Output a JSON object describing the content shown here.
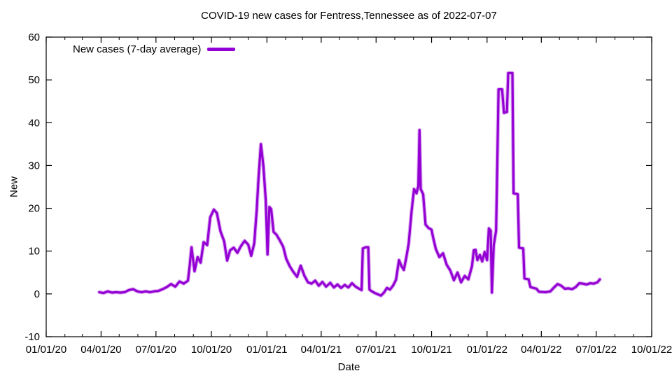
{
  "chart_data": {
    "type": "line",
    "title": "COVID-19 new cases for Fentress,Tennessee as of 2022-07-07",
    "xlabel": "Date",
    "ylabel": "New",
    "grid": false,
    "legend_position": "top-left-inside",
    "axis_color": "#000000",
    "background_color": "#ffffff",
    "ylim": [
      -10,
      60
    ],
    "y_ticks": [
      -10,
      0,
      10,
      20,
      30,
      40,
      50,
      60
    ],
    "xlim": [
      "2020-01-01",
      "2022-10-01"
    ],
    "x_ticks": [
      {
        "date": "2020-01-01",
        "label": "01/01/20"
      },
      {
        "date": "2020-04-01",
        "label": "04/01/20"
      },
      {
        "date": "2020-07-01",
        "label": "07/01/20"
      },
      {
        "date": "2020-10-01",
        "label": "10/01/20"
      },
      {
        "date": "2021-01-01",
        "label": "01/01/21"
      },
      {
        "date": "2021-04-01",
        "label": "04/01/21"
      },
      {
        "date": "2021-07-01",
        "label": "07/01/21"
      },
      {
        "date": "2021-10-01",
        "label": "10/01/21"
      },
      {
        "date": "2022-01-01",
        "label": "01/01/22"
      },
      {
        "date": "2022-04-01",
        "label": "04/01/22"
      },
      {
        "date": "2022-07-01",
        "label": "07/01/22"
      },
      {
        "date": "2022-10-01",
        "label": "10/01/22"
      }
    ],
    "legend": [
      {
        "label": "New cases (7-day average)",
        "color": "#9400D3"
      }
    ],
    "series": [
      {
        "name": "New cases (7-day average)",
        "color": "#9400D3",
        "halo_color": "#c06ae8",
        "points": [
          [
            "2020-03-29",
            0.4
          ],
          [
            "2020-04-05",
            0.2
          ],
          [
            "2020-04-12",
            0.6
          ],
          [
            "2020-04-19",
            0.3
          ],
          [
            "2020-04-26",
            0.4
          ],
          [
            "2020-05-03",
            0.3
          ],
          [
            "2020-05-10",
            0.4
          ],
          [
            "2020-05-17",
            0.9
          ],
          [
            "2020-05-24",
            1.1
          ],
          [
            "2020-05-31",
            0.6
          ],
          [
            "2020-06-07",
            0.4
          ],
          [
            "2020-06-14",
            0.6
          ],
          [
            "2020-06-21",
            0.4
          ],
          [
            "2020-06-28",
            0.6
          ],
          [
            "2020-07-05",
            0.7
          ],
          [
            "2020-07-12",
            1.1
          ],
          [
            "2020-07-19",
            1.6
          ],
          [
            "2020-07-26",
            2.3
          ],
          [
            "2020-08-02",
            1.7
          ],
          [
            "2020-08-09",
            2.9
          ],
          [
            "2020-08-16",
            2.4
          ],
          [
            "2020-08-23",
            3.1
          ],
          [
            "2020-08-26",
            6.6
          ],
          [
            "2020-08-29",
            10.9
          ],
          [
            "2020-09-03",
            5.3
          ],
          [
            "2020-09-08",
            8.6
          ],
          [
            "2020-09-13",
            7.3
          ],
          [
            "2020-09-18",
            12.1
          ],
          [
            "2020-09-24",
            11.4
          ],
          [
            "2020-09-29",
            17.9
          ],
          [
            "2020-10-05",
            19.7
          ],
          [
            "2020-10-10",
            18.9
          ],
          [
            "2020-10-16",
            14.6
          ],
          [
            "2020-10-22",
            12.3
          ],
          [
            "2020-10-27",
            7.8
          ],
          [
            "2020-11-01",
            10.2
          ],
          [
            "2020-11-07",
            10.8
          ],
          [
            "2020-11-13",
            9.6
          ],
          [
            "2020-11-19",
            11.2
          ],
          [
            "2020-11-25",
            12.4
          ],
          [
            "2020-12-01",
            11.5
          ],
          [
            "2020-12-06",
            8.9
          ],
          [
            "2020-12-11",
            11.8
          ],
          [
            "2020-12-15",
            19.5
          ],
          [
            "2020-12-18",
            27.0
          ],
          [
            "2020-12-22",
            35.0
          ],
          [
            "2020-12-26",
            30.0
          ],
          [
            "2020-12-30",
            22.0
          ],
          [
            "2021-01-02",
            9.2
          ],
          [
            "2021-01-05",
            20.3
          ],
          [
            "2021-01-08",
            19.8
          ],
          [
            "2021-01-12",
            14.5
          ],
          [
            "2021-01-17",
            13.8
          ],
          [
            "2021-01-22",
            12.6
          ],
          [
            "2021-01-28",
            11.0
          ],
          [
            "2021-02-02",
            8.2
          ],
          [
            "2021-02-08",
            6.4
          ],
          [
            "2021-02-14",
            5.1
          ],
          [
            "2021-02-20",
            4.0
          ],
          [
            "2021-02-26",
            6.6
          ],
          [
            "2021-03-04",
            4.3
          ],
          [
            "2021-03-10",
            2.7
          ],
          [
            "2021-03-16",
            2.4
          ],
          [
            "2021-03-22",
            3.1
          ],
          [
            "2021-03-28",
            1.9
          ],
          [
            "2021-04-03",
            2.8
          ],
          [
            "2021-04-09",
            1.7
          ],
          [
            "2021-04-16",
            2.6
          ],
          [
            "2021-04-22",
            1.5
          ],
          [
            "2021-04-28",
            2.2
          ],
          [
            "2021-05-04",
            1.4
          ],
          [
            "2021-05-10",
            2.1
          ],
          [
            "2021-05-16",
            1.5
          ],
          [
            "2021-05-22",
            2.5
          ],
          [
            "2021-05-28",
            1.7
          ],
          [
            "2021-06-03",
            1.2
          ],
          [
            "2021-06-07",
            0.9
          ],
          [
            "2021-06-09",
            10.6
          ],
          [
            "2021-06-14",
            10.9
          ],
          [
            "2021-06-18",
            10.9
          ],
          [
            "2021-06-20",
            1.0
          ],
          [
            "2021-06-24",
            0.6
          ],
          [
            "2021-06-29",
            0.2
          ],
          [
            "2021-07-04",
            -0.1
          ],
          [
            "2021-07-09",
            -0.4
          ],
          [
            "2021-07-14",
            0.3
          ],
          [
            "2021-07-19",
            1.4
          ],
          [
            "2021-07-24",
            1.0
          ],
          [
            "2021-07-29",
            1.9
          ],
          [
            "2021-08-03",
            3.3
          ],
          [
            "2021-08-08",
            7.9
          ],
          [
            "2021-08-12",
            6.5
          ],
          [
            "2021-08-16",
            5.6
          ],
          [
            "2021-08-20",
            8.4
          ],
          [
            "2021-08-24",
            11.7
          ],
          [
            "2021-08-29",
            19.5
          ],
          [
            "2021-09-02",
            24.5
          ],
          [
            "2021-09-06",
            23.5
          ],
          [
            "2021-09-09",
            25.2
          ],
          [
            "2021-09-11",
            38.3
          ],
          [
            "2021-09-13",
            24.5
          ],
          [
            "2021-09-17",
            23.3
          ],
          [
            "2021-09-21",
            16.2
          ],
          [
            "2021-09-26",
            15.4
          ],
          [
            "2021-10-01",
            15.0
          ],
          [
            "2021-10-03",
            13.5
          ],
          [
            "2021-10-08",
            10.5
          ],
          [
            "2021-10-14",
            8.6
          ],
          [
            "2021-10-20",
            9.5
          ],
          [
            "2021-10-26",
            6.8
          ],
          [
            "2021-11-01",
            5.5
          ],
          [
            "2021-11-07",
            3.2
          ],
          [
            "2021-11-13",
            5.0
          ],
          [
            "2021-11-19",
            2.7
          ],
          [
            "2021-11-25",
            4.2
          ],
          [
            "2021-12-01",
            3.4
          ],
          [
            "2021-12-07",
            6.5
          ],
          [
            "2021-12-10",
            10.2
          ],
          [
            "2021-12-13",
            10.3
          ],
          [
            "2021-12-16",
            7.9
          ],
          [
            "2021-12-20",
            9.1
          ],
          [
            "2021-12-24",
            7.6
          ],
          [
            "2021-12-28",
            9.8
          ],
          [
            "2022-01-01",
            7.9
          ],
          [
            "2022-01-04",
            15.3
          ],
          [
            "2022-01-07",
            14.8
          ],
          [
            "2022-01-09",
            0.3
          ],
          [
            "2022-01-12",
            11.3
          ],
          [
            "2022-01-16",
            14.8
          ],
          [
            "2022-01-18",
            30.2
          ],
          [
            "2022-01-20",
            47.8
          ],
          [
            "2022-01-26",
            47.8
          ],
          [
            "2022-01-29",
            42.3
          ],
          [
            "2022-02-03",
            42.5
          ],
          [
            "2022-02-05",
            51.6
          ],
          [
            "2022-02-12",
            51.6
          ],
          [
            "2022-02-14",
            23.5
          ],
          [
            "2022-02-21",
            23.3
          ],
          [
            "2022-02-23",
            10.8
          ],
          [
            "2022-03-02",
            10.6
          ],
          [
            "2022-03-04",
            3.6
          ],
          [
            "2022-03-11",
            3.4
          ],
          [
            "2022-03-14",
            1.6
          ],
          [
            "2022-03-24",
            1.2
          ],
          [
            "2022-03-28",
            0.5
          ],
          [
            "2022-04-08",
            0.4
          ],
          [
            "2022-04-16",
            0.6
          ],
          [
            "2022-04-22",
            1.5
          ],
          [
            "2022-04-28",
            2.3
          ],
          [
            "2022-05-04",
            1.9
          ],
          [
            "2022-05-10",
            1.2
          ],
          [
            "2022-05-16",
            1.3
          ],
          [
            "2022-05-22",
            1.1
          ],
          [
            "2022-05-28",
            1.6
          ],
          [
            "2022-06-03",
            2.5
          ],
          [
            "2022-06-09",
            2.4
          ],
          [
            "2022-06-15",
            2.2
          ],
          [
            "2022-06-21",
            2.5
          ],
          [
            "2022-06-27",
            2.4
          ],
          [
            "2022-07-03",
            2.7
          ],
          [
            "2022-07-07",
            3.4
          ]
        ]
      }
    ]
  }
}
